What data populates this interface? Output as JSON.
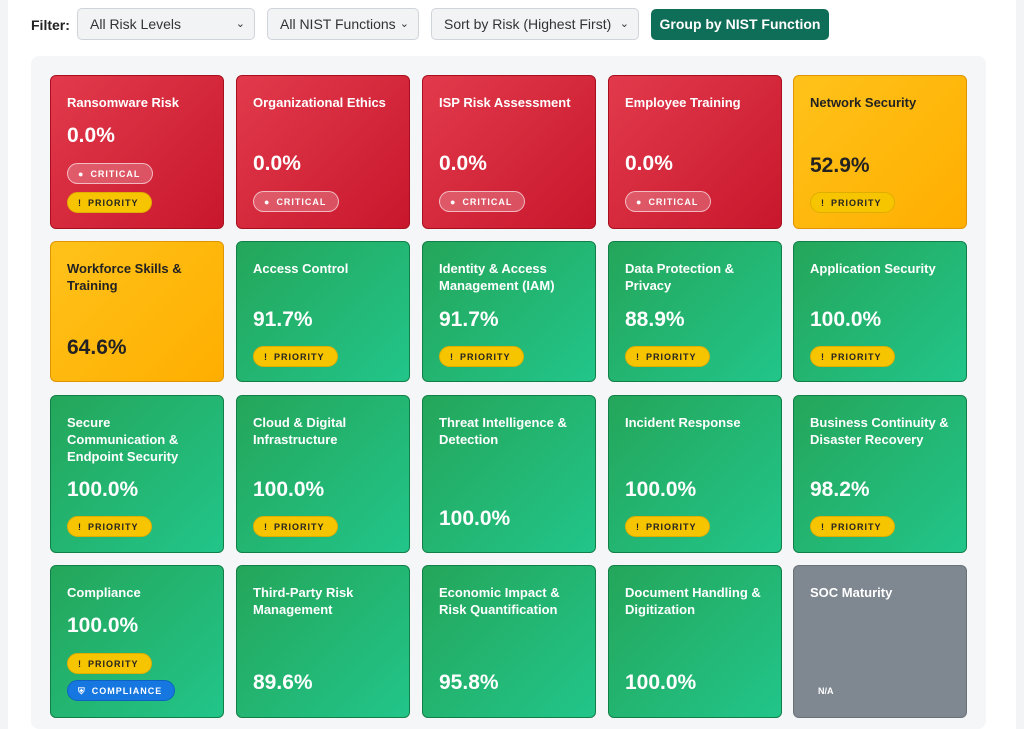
{
  "toolbar": {
    "filter_label": "Filter:",
    "risk_select": "All Risk Levels",
    "nist_select": "All NIST Functions",
    "sort_select": "Sort by Risk (Highest First)",
    "group_button": "Group by NIST Function"
  },
  "colors": {
    "critical": "#d52a3d",
    "warning": "#ffb70a",
    "good": "#22b370",
    "na": "#7f8790",
    "accent": "#0f6e57"
  },
  "badges": {
    "critical": "CRITICAL",
    "priority": "PRIORITY",
    "compliance": "COMPLIANCE"
  },
  "cards": [
    {
      "title": "Ransomware Risk",
      "value": "0.0%"
    },
    {
      "title": "Organizational Ethics",
      "value": "0.0%"
    },
    {
      "title": "ISP Risk Assessment",
      "value": "0.0%"
    },
    {
      "title": "Employee Training",
      "value": "0.0%"
    },
    {
      "title": "Network Security",
      "value": "52.9%"
    },
    {
      "title": "Workforce Skills & Training",
      "value": "64.6%"
    },
    {
      "title": "Access Control",
      "value": "91.7%"
    },
    {
      "title": "Identity & Access Management (IAM)",
      "value": "91.7%"
    },
    {
      "title": "Data Protection & Privacy",
      "value": "88.9%"
    },
    {
      "title": "Application Security",
      "value": "100.0%"
    },
    {
      "title": "Secure Communication & Endpoint Security",
      "value": "100.0%"
    },
    {
      "title": "Cloud & Digital Infrastructure",
      "value": "100.0%"
    },
    {
      "title": "Threat Intelligence & Detection",
      "value": "100.0%"
    },
    {
      "title": "Incident Response",
      "value": "100.0%"
    },
    {
      "title": "Business Continuity & Disaster Recovery",
      "value": "98.2%"
    },
    {
      "title": "Compliance",
      "value": "100.0%"
    },
    {
      "title": "Third-Party Risk Management",
      "value": "89.6%"
    },
    {
      "title": "Economic Impact & Risk Quantification",
      "value": "95.8%"
    },
    {
      "title": "Document Handling & Digitization",
      "value": "100.0%"
    },
    {
      "title": "SOC Maturity",
      "value": "N/A"
    }
  ]
}
